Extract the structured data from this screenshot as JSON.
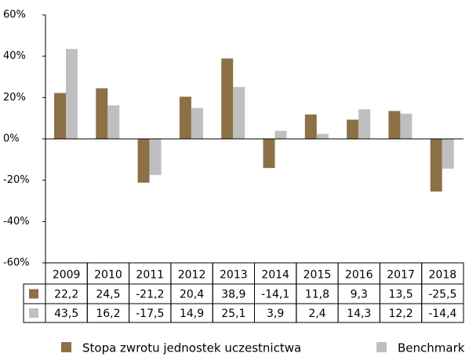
{
  "chart_data": {
    "type": "bar",
    "categories": [
      "2009",
      "2010",
      "2011",
      "2012",
      "2013",
      "2014",
      "2015",
      "2016",
      "2017",
      "2018"
    ],
    "series": [
      {
        "name": "Stopa zwrotu jednostek uczestnictwa",
        "color": "#8c7046",
        "values": [
          22.2,
          24.5,
          -21.2,
          20.4,
          38.9,
          -14.1,
          11.8,
          9.3,
          13.5,
          -25.5
        ],
        "value_labels": [
          "22,2",
          "24,5",
          "-21,2",
          "20,4",
          "38,9",
          "-14,1",
          "11,8",
          "9,3",
          "13,5",
          "-25,5"
        ]
      },
      {
        "name": "Benchmark",
        "color": "#bfbfbf",
        "values": [
          43.5,
          16.2,
          -17.5,
          14.9,
          25.1,
          3.9,
          2.4,
          14.3,
          12.2,
          -14.4
        ],
        "value_labels": [
          "43,5",
          "16,2",
          "-17,5",
          "14,9",
          "25,1",
          "3,9",
          "2,4",
          "14,3",
          "12,2",
          "-14,4"
        ]
      }
    ],
    "ylim": [
      -60,
      60
    ],
    "yticks": [
      {
        "value": -60,
        "label": "-60%"
      },
      {
        "value": -40,
        "label": "-40%"
      },
      {
        "value": -20,
        "label": "-20%"
      },
      {
        "value": 0,
        "label": "0%"
      },
      {
        "value": 20,
        "label": "20%"
      },
      {
        "value": 40,
        "label": "40%"
      },
      {
        "value": 60,
        "label": "60%"
      }
    ],
    "grid": false
  }
}
